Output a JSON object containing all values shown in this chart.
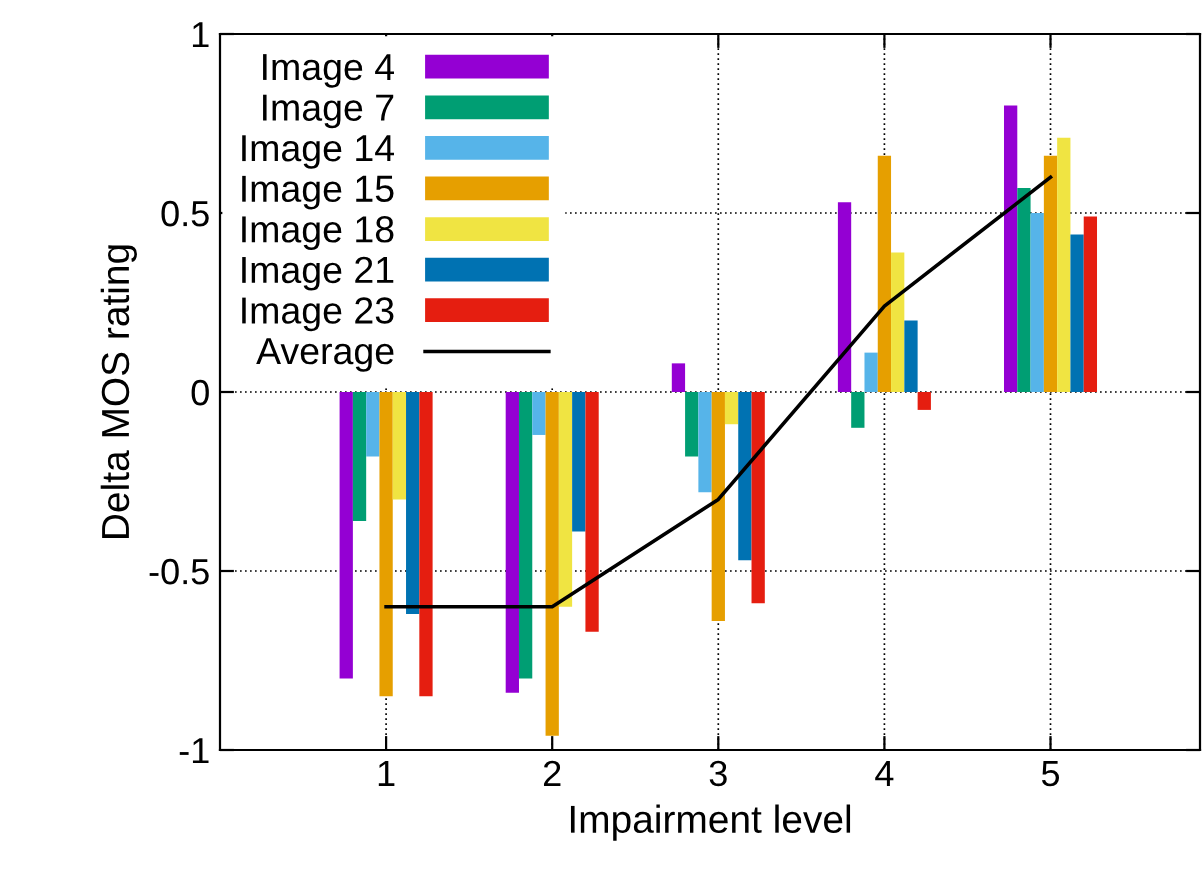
{
  "chart_data": {
    "type": "bar",
    "xlabel": "Impairment level",
    "ylabel": "Delta MOS rating",
    "categories": [
      "1",
      "2",
      "3",
      "4",
      "5"
    ],
    "ylim": [
      -1,
      1
    ],
    "yticks": [
      -1,
      -0.5,
      0,
      0.5,
      1
    ],
    "grid": true,
    "legend": "top left",
    "series": [
      {
        "name": "Image 4",
        "color": "#9400d3",
        "values": [
          -0.8,
          -0.84,
          0.08,
          0.53,
          0.8
        ]
      },
      {
        "name": "Image 7",
        "color": "#009e73",
        "values": [
          -0.36,
          -0.8,
          -0.18,
          -0.1,
          0.57
        ]
      },
      {
        "name": "Image 14",
        "color": "#56b4e9",
        "values": [
          -0.18,
          -0.12,
          -0.28,
          0.11,
          0.5
        ]
      },
      {
        "name": "Image 15",
        "color": "#e69f00",
        "values": [
          -0.85,
          -0.96,
          -0.64,
          0.66,
          0.66
        ]
      },
      {
        "name": "Image 18",
        "color": "#f0e442",
        "values": [
          -0.3,
          -0.6,
          -0.09,
          0.39,
          0.71
        ]
      },
      {
        "name": "Image 21",
        "color": "#0072b2",
        "values": [
          -0.62,
          -0.39,
          -0.47,
          0.2,
          0.44
        ]
      },
      {
        "name": "Image 23",
        "color": "#e51e10",
        "values": [
          -0.85,
          -0.67,
          -0.59,
          -0.05,
          0.49
        ]
      },
      {
        "name": "Average",
        "type": "line",
        "color": "#000000",
        "values": [
          -0.6,
          -0.6,
          -0.3,
          0.24,
          0.6
        ]
      }
    ]
  }
}
